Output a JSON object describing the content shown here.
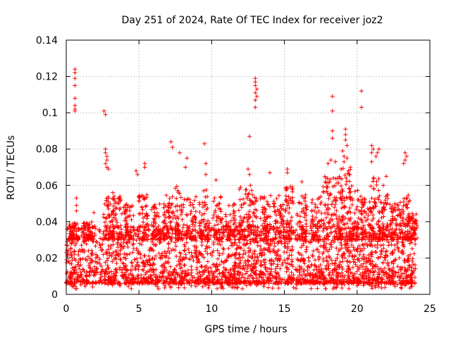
{
  "chart_data": {
    "type": "scatter",
    "title": "Day 251 of 2024, Rate Of TEC Index for receiver joz2",
    "xlabel": "GPS time / hours",
    "ylabel": "ROTI / TECUs",
    "xlim": [
      0,
      25
    ],
    "ylim": [
      0,
      0.14
    ],
    "x_ticks": [
      0,
      5,
      10,
      15,
      20,
      25
    ],
    "x_tick_labels": [
      "0",
      "5",
      "10",
      "15",
      "20",
      "25"
    ],
    "y_ticks": [
      0,
      0.02,
      0.04,
      0.06,
      0.08,
      0.1,
      0.12,
      0.14
    ],
    "y_tick_labels": [
      "0",
      "0.02",
      "0.04",
      "0.06",
      "0.08",
      "0.1",
      "0.12",
      "0.14"
    ],
    "grid": true,
    "marker": "+",
    "series": [
      {
        "name": "ROTI",
        "color": "#ff0000",
        "points": [
          [
            0.6,
            0.124
          ],
          [
            0.6,
            0.122
          ],
          [
            0.6,
            0.119
          ],
          [
            0.6,
            0.115
          ],
          [
            0.6,
            0.108
          ],
          [
            0.6,
            0.104
          ],
          [
            0.6,
            0.102
          ],
          [
            0.6,
            0.101
          ],
          [
            0.7,
            0.053
          ],
          [
            0.7,
            0.049
          ],
          [
            0.7,
            0.046
          ],
          [
            1.9,
            0.045
          ],
          [
            2.6,
            0.101
          ],
          [
            2.7,
            0.099
          ],
          [
            2.7,
            0.08
          ],
          [
            2.7,
            0.078
          ],
          [
            2.8,
            0.076
          ],
          [
            2.8,
            0.074
          ],
          [
            2.7,
            0.072
          ],
          [
            2.8,
            0.07
          ],
          [
            2.9,
            0.069
          ],
          [
            3.2,
            0.056
          ],
          [
            3.3,
            0.054
          ],
          [
            3.6,
            0.05
          ],
          [
            4.8,
            0.068
          ],
          [
            4.9,
            0.066
          ],
          [
            5.4,
            0.072
          ],
          [
            5.4,
            0.07
          ],
          [
            7.2,
            0.084
          ],
          [
            7.3,
            0.081
          ],
          [
            7.8,
            0.078
          ],
          [
            8.3,
            0.075
          ],
          [
            8.2,
            0.07
          ],
          [
            9.5,
            0.083
          ],
          [
            9.6,
            0.072
          ],
          [
            9.6,
            0.066
          ],
          [
            10.3,
            0.063
          ],
          [
            12.6,
            0.087
          ],
          [
            12.5,
            0.069
          ],
          [
            12.6,
            0.066
          ],
          [
            13.0,
            0.119
          ],
          [
            13.0,
            0.117
          ],
          [
            13.0,
            0.115
          ],
          [
            13.1,
            0.113
          ],
          [
            13.0,
            0.111
          ],
          [
            13.1,
            0.109
          ],
          [
            13.0,
            0.107
          ],
          [
            13.0,
            0.103
          ],
          [
            14.0,
            0.067
          ],
          [
            15.2,
            0.069
          ],
          [
            15.2,
            0.067
          ],
          [
            16.2,
            0.062
          ],
          [
            18.3,
            0.109
          ],
          [
            18.3,
            0.101
          ],
          [
            18.3,
            0.09
          ],
          [
            18.3,
            0.086
          ],
          [
            18.0,
            0.072
          ],
          [
            18.2,
            0.074
          ],
          [
            18.5,
            0.073
          ],
          [
            19.2,
            0.091
          ],
          [
            19.2,
            0.088
          ],
          [
            19.2,
            0.085
          ],
          [
            19.3,
            0.082
          ],
          [
            19.0,
            0.079
          ],
          [
            19.1,
            0.076
          ],
          [
            19.3,
            0.075
          ],
          [
            19.1,
            0.073
          ],
          [
            18.9,
            0.069
          ],
          [
            19.4,
            0.068
          ],
          [
            19.5,
            0.066
          ],
          [
            20.3,
            0.112
          ],
          [
            20.3,
            0.103
          ],
          [
            21.0,
            0.082
          ],
          [
            21.1,
            0.08
          ],
          [
            21.0,
            0.078
          ],
          [
            21.5,
            0.08
          ],
          [
            21.4,
            0.078
          ],
          [
            21.3,
            0.076
          ],
          [
            21.0,
            0.073
          ],
          [
            21.8,
            0.06
          ],
          [
            22.0,
            0.065
          ],
          [
            23.3,
            0.078
          ],
          [
            23.4,
            0.076
          ],
          [
            23.3,
            0.074
          ],
          [
            23.2,
            0.072
          ],
          [
            24.0,
            0.04
          ]
        ]
      }
    ]
  }
}
